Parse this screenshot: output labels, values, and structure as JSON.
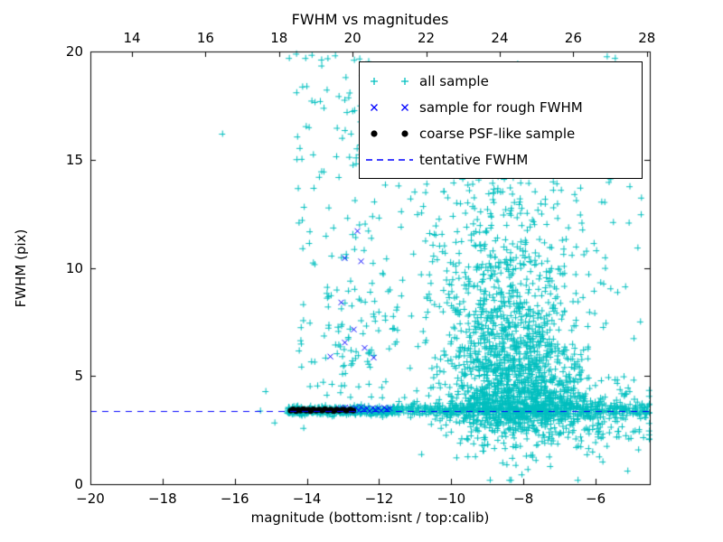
{
  "title": "FWHM vs magnitudes",
  "axes": {
    "xlabel": "magnitude (bottom:isnt / top:calib)",
    "ylabel": "FWHM (pix)",
    "xlim": [
      -20,
      -4.5
    ],
    "ylim": [
      0,
      20
    ],
    "x_ticks": [
      -20,
      -18,
      -16,
      -14,
      -12,
      -10,
      -8,
      -6
    ],
    "y_ticks": [
      0,
      5,
      10,
      15,
      20
    ],
    "top_xlim": [
      12.87,
      28.08
    ],
    "top_ticks": [
      14,
      16,
      18,
      20,
      22,
      24,
      26,
      28
    ]
  },
  "legend": {
    "entries": [
      {
        "label": "all sample",
        "marker": "plus",
        "color": "#00bfbf"
      },
      {
        "label": "sample for rough FWHM",
        "marker": "x",
        "color": "#0000ff"
      },
      {
        "label": "coarse PSF-like sample",
        "marker": "dot",
        "color": "#000000"
      },
      {
        "label": "tentative FWHM",
        "marker": "dashed-line",
        "color": "#0000ff"
      }
    ]
  },
  "chart_data": {
    "type": "scatter",
    "title": "FWHM vs magnitudes",
    "xlabel": "magnitude (bottom:isnt / top:calib)",
    "ylabel": "FWHM (pix)",
    "xlim": [
      -20,
      -4.5
    ],
    "ylim": [
      0,
      20
    ],
    "seed": 42,
    "tentative_fwhm": 3.4,
    "series": [
      {
        "name": "all sample",
        "marker": "plus",
        "color": "#00bfbf",
        "clusters": [
          {
            "type": "gauss",
            "cx": -8.3,
            "cy": 4.8,
            "sx": 0.95,
            "sy": 1.6,
            "n": 900
          },
          {
            "type": "gauss",
            "cx": -8.5,
            "cy": 8.5,
            "sx": 1.05,
            "sy": 2.6,
            "n": 500
          },
          {
            "type": "gauss",
            "cx": -8.0,
            "cy": 3.6,
            "sx": 1.2,
            "sy": 0.5,
            "n": 400
          },
          {
            "type": "band",
            "x0": -14.55,
            "x1": -11.5,
            "y": 3.4,
            "sy": 0.1,
            "n": 420
          },
          {
            "type": "band",
            "x0": -11.5,
            "x1": -4.55,
            "y": 3.45,
            "sy": 0.16,
            "n": 450
          },
          {
            "type": "gauss",
            "cx": -6.3,
            "cy": 2.9,
            "sx": 1.1,
            "sy": 0.9,
            "n": 130
          },
          {
            "type": "uniform",
            "x0": -14.3,
            "x1": -11.8,
            "y0": 4.0,
            "y1": 19.9,
            "n": 130
          },
          {
            "type": "uniform",
            "x0": -13.5,
            "x1": -11.5,
            "y0": 4.0,
            "y1": 9.0,
            "n": 60
          },
          {
            "type": "uniform",
            "x0": -11.2,
            "x1": -4.6,
            "y0": 1.2,
            "y1": 19.5,
            "n": 110
          },
          {
            "type": "gauss",
            "cx": -9.3,
            "cy": 13.5,
            "sx": 1.3,
            "sy": 2.6,
            "n": 90
          },
          {
            "type": "uniform",
            "x0": -10.8,
            "x1": -5.0,
            "y0": 12.0,
            "y1": 19.8,
            "n": 70
          }
        ],
        "points": [
          [
            -16.35,
            16.2
          ],
          [
            -15.15,
            4.3
          ],
          [
            -14.9,
            2.85
          ],
          [
            -14.5,
            19.7
          ],
          [
            -14.3,
            19.9
          ],
          [
            -13.95,
            16.5
          ],
          [
            -13.6,
            19.35
          ],
          [
            -12.9,
            17.2
          ],
          [
            -12.3,
            19.55
          ],
          [
            -11.4,
            11.9
          ],
          [
            -14.1,
            2.6
          ],
          [
            -15.3,
            3.4
          ]
        ]
      },
      {
        "name": "sample for rough FWHM",
        "marker": "x",
        "color": "#0000ff",
        "points": [
          [
            -12.6,
            11.7
          ],
          [
            -12.95,
            10.45
          ],
          [
            -12.5,
            10.3
          ],
          [
            -13.05,
            8.4
          ],
          [
            -12.7,
            7.15
          ],
          [
            -12.95,
            6.55
          ],
          [
            -12.4,
            6.3
          ],
          [
            -13.35,
            5.9
          ],
          [
            -12.15,
            5.85
          ],
          [
            -13.1,
            3.5
          ],
          [
            -13.02,
            3.42
          ],
          [
            -12.94,
            3.55
          ],
          [
            -12.88,
            3.38
          ],
          [
            -12.8,
            3.5
          ],
          [
            -12.72,
            3.44
          ],
          [
            -12.64,
            3.52
          ],
          [
            -12.56,
            3.4
          ],
          [
            -12.5,
            3.56
          ],
          [
            -12.42,
            3.45
          ],
          [
            -12.34,
            3.5
          ],
          [
            -12.26,
            3.38
          ],
          [
            -12.18,
            3.52
          ],
          [
            -12.1,
            3.44
          ],
          [
            -12.02,
            3.5
          ],
          [
            -11.94,
            3.4
          ],
          [
            -11.86,
            3.54
          ],
          [
            -11.78,
            3.46
          ],
          [
            -11.7,
            3.5
          ]
        ]
      },
      {
        "name": "coarse PSF-like sample",
        "marker": "dot",
        "color": "#000000",
        "points": [
          [
            -14.45,
            3.4
          ],
          [
            -14.38,
            3.45
          ],
          [
            -14.3,
            3.38
          ],
          [
            -14.24,
            3.44
          ],
          [
            -14.18,
            3.4
          ],
          [
            -14.1,
            3.46
          ],
          [
            -14.02,
            3.4
          ],
          [
            -13.96,
            3.44
          ],
          [
            -13.9,
            3.38
          ],
          [
            -13.82,
            3.45
          ],
          [
            -13.74,
            3.4
          ],
          [
            -13.66,
            3.44
          ],
          [
            -13.58,
            3.4
          ],
          [
            -13.5,
            3.46
          ],
          [
            -13.42,
            3.4
          ],
          [
            -13.34,
            3.44
          ],
          [
            -13.26,
            3.38
          ],
          [
            -13.18,
            3.44
          ],
          [
            -13.1,
            3.4
          ],
          [
            -13.0,
            3.44
          ],
          [
            -12.9,
            3.4
          ],
          [
            -12.8,
            3.44
          ],
          [
            -12.72,
            3.4
          ]
        ]
      },
      {
        "name": "tentative FWHM",
        "marker": "hline",
        "style": "dashed",
        "color": "#0000ff",
        "y": 3.4
      }
    ]
  }
}
